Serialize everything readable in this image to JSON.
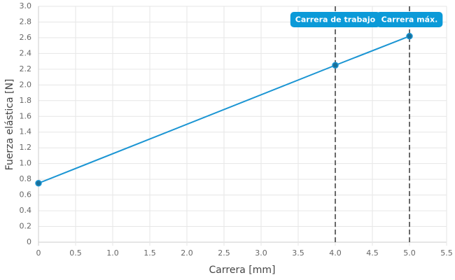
{
  "chart_data": {
    "type": "line",
    "x_label": "Carrera [mm]",
    "y_label": "Fuerza elástica [N]",
    "x": [
      0,
      4,
      5
    ],
    "series": [
      {
        "color": "#1b95d3",
        "values": [
          0.75,
          2.25,
          2.62
        ]
      }
    ],
    "xlim": [
      0,
      5.5
    ],
    "xticks": [
      0,
      0.5,
      {
        "value": 1,
        "label": "1.0"
      },
      1.5,
      {
        "value": 2,
        "label": "2.0"
      },
      2.5,
      {
        "value": 3,
        "label": "3.0"
      },
      3.5,
      {
        "value": 4,
        "label": "4.0"
      },
      4.5,
      {
        "value": 5,
        "label": "5.0"
      },
      5.5
    ],
    "ylim": [
      0,
      3
    ],
    "yticks": [
      0,
      0.2,
      0.4,
      0.6,
      0.8,
      {
        "value": 1,
        "label": "1.0"
      },
      1.2,
      1.4,
      1.6,
      1.8,
      {
        "value": 2,
        "label": "2.0"
      },
      2.2,
      2.4,
      2.6,
      2.8,
      {
        "value": 3,
        "label": "3.0"
      }
    ],
    "grid": true,
    "annotations": [
      {
        "x": 4,
        "label": "Carrera de trabajo"
      },
      {
        "x": 5,
        "label": "Carrera máx."
      }
    ],
    "annotation_color": "#0b9ad8"
  }
}
